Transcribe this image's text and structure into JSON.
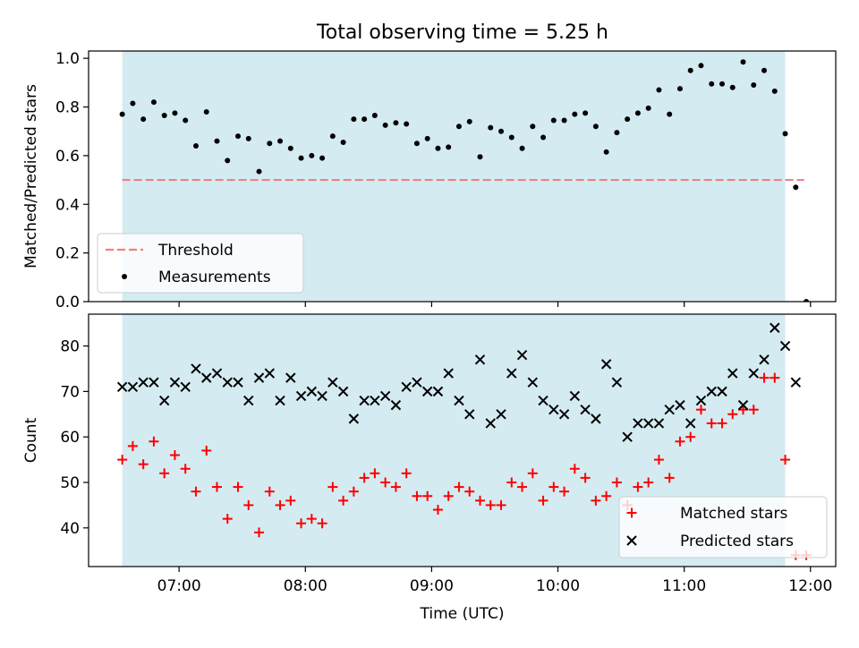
{
  "figure": {
    "title": "Total observing time = 5.25 h",
    "colors": {
      "background": "#ffffff",
      "observing_window": "#add8e6",
      "threshold": "#f08080",
      "measurements": "#000000",
      "matched": "#ff0000",
      "predicted": "#000000"
    }
  },
  "chart_data": [
    {
      "type": "scatter",
      "panel": "top",
      "ylabel": "Matched/Predicted stars",
      "xlim": [
        "06:17",
        "12:12"
      ],
      "ylim": [
        0,
        1.03
      ],
      "yticks": [
        "0.0",
        "0.2",
        "0.4",
        "0.6",
        "0.8",
        "1.0"
      ],
      "yticks_values": [
        0,
        0.2,
        0.4,
        0.6,
        0.8,
        1.0
      ],
      "observing_window": [
        "06:33",
        "11:48"
      ],
      "threshold": {
        "name": "Threshold",
        "value": 0.5,
        "x_range": [
          "06:33",
          "11:57"
        ],
        "style": "dashed"
      },
      "legend": {
        "placement": "lower-left",
        "entries": [
          "Threshold",
          "Measurements"
        ]
      },
      "series": [
        {
          "name": "Measurements",
          "marker": "dot",
          "x": [
            "06:33",
            "06:38",
            "06:43",
            "06:48",
            "06:53",
            "06:58",
            "07:03",
            "07:08",
            "07:13",
            "07:18",
            "07:23",
            "07:28",
            "07:33",
            "07:38",
            "07:43",
            "07:48",
            "07:53",
            "07:58",
            "08:03",
            "08:08",
            "08:13",
            "08:18",
            "08:23",
            "08:28",
            "08:33",
            "08:38",
            "08:43",
            "08:48",
            "08:53",
            "08:58",
            "09:03",
            "09:08",
            "09:13",
            "09:18",
            "09:23",
            "09:28",
            "09:33",
            "09:38",
            "09:43",
            "09:48",
            "09:53",
            "09:58",
            "10:03",
            "10:08",
            "10:13",
            "10:18",
            "10:23",
            "10:28",
            "10:33",
            "10:38",
            "10:43",
            "10:48",
            "10:53",
            "10:58",
            "11:03",
            "11:08",
            "11:13",
            "11:18",
            "11:23",
            "11:28",
            "11:33",
            "11:38",
            "11:43",
            "11:48",
            "11:53",
            "11:58"
          ],
          "values": [
            0.77,
            0.815,
            0.75,
            0.82,
            0.765,
            0.775,
            0.745,
            0.64,
            0.78,
            0.66,
            0.58,
            0.68,
            0.67,
            0.535,
            0.65,
            0.66,
            0.63,
            0.59,
            0.6,
            0.59,
            0.68,
            0.655,
            0.75,
            0.75,
            0.765,
            0.725,
            0.735,
            0.73,
            0.65,
            0.67,
            0.63,
            0.635,
            0.72,
            0.74,
            0.595,
            0.715,
            0.7,
            0.675,
            0.63,
            0.72,
            0.675,
            0.745,
            0.745,
            0.77,
            0.775,
            0.72,
            0.615,
            0.695,
            0.75,
            0.775,
            0.795,
            0.87,
            0.77,
            0.875,
            0.95,
            0.97,
            0.895,
            0.895,
            0.88,
            0.985,
            0.89,
            0.95,
            0.865,
            0.69,
            0.47,
            0.0
          ]
        }
      ]
    },
    {
      "type": "scatter",
      "panel": "bottom",
      "xlabel": "Time (UTC)",
      "ylabel": "Count",
      "xlim": [
        "06:17",
        "12:12"
      ],
      "ylim": [
        31.5,
        87
      ],
      "xticks": [
        "07:00",
        "08:00",
        "09:00",
        "10:00",
        "11:00",
        "12:00"
      ],
      "yticks": [
        "40",
        "50",
        "60",
        "70",
        "80"
      ],
      "yticks_values": [
        40,
        50,
        60,
        70,
        80
      ],
      "observing_window": [
        "06:33",
        "11:48"
      ],
      "legend": {
        "placement": "lower-right",
        "entries": [
          "Matched stars",
          "Predicted stars"
        ]
      },
      "series": [
        {
          "name": "Matched stars",
          "marker": "plus",
          "x": [
            "06:33",
            "06:38",
            "06:43",
            "06:48",
            "06:53",
            "06:58",
            "07:03",
            "07:08",
            "07:13",
            "07:18",
            "07:23",
            "07:28",
            "07:33",
            "07:38",
            "07:43",
            "07:48",
            "07:53",
            "07:58",
            "08:03",
            "08:08",
            "08:13",
            "08:18",
            "08:23",
            "08:28",
            "08:33",
            "08:38",
            "08:43",
            "08:48",
            "08:53",
            "08:58",
            "09:03",
            "09:08",
            "09:13",
            "09:18",
            "09:23",
            "09:28",
            "09:33",
            "09:38",
            "09:43",
            "09:48",
            "09:53",
            "09:58",
            "10:03",
            "10:08",
            "10:13",
            "10:18",
            "10:23",
            "10:28",
            "10:33",
            "10:38",
            "10:43",
            "10:48",
            "10:53",
            "10:58",
            "11:03",
            "11:08",
            "11:13",
            "11:18",
            "11:23",
            "11:28",
            "11:33",
            "11:38",
            "11:43",
            "11:48",
            "11:53",
            "11:58"
          ],
          "values": [
            55,
            58,
            54,
            59,
            52,
            56,
            53,
            48,
            57,
            49,
            42,
            49,
            45,
            39,
            48,
            45,
            46,
            41,
            42,
            41,
            49,
            46,
            48,
            51,
            52,
            50,
            49,
            52,
            47,
            47,
            44,
            47,
            49,
            48,
            46,
            45,
            45,
            50,
            49,
            52,
            46,
            49,
            48,
            53,
            51,
            46,
            47,
            50,
            45,
            49,
            50,
            55,
            51,
            59,
            60,
            66,
            63,
            63,
            65,
            66,
            66,
            73,
            73,
            55,
            34,
            34
          ]
        },
        {
          "name": "Predicted stars",
          "marker": "x",
          "x": [
            "06:33",
            "06:38",
            "06:43",
            "06:48",
            "06:53",
            "06:58",
            "07:03",
            "07:08",
            "07:13",
            "07:18",
            "07:23",
            "07:28",
            "07:33",
            "07:38",
            "07:43",
            "07:48",
            "07:53",
            "07:58",
            "08:03",
            "08:08",
            "08:13",
            "08:18",
            "08:23",
            "08:28",
            "08:33",
            "08:38",
            "08:43",
            "08:48",
            "08:53",
            "08:58",
            "09:03",
            "09:08",
            "09:13",
            "09:18",
            "09:23",
            "09:28",
            "09:33",
            "09:38",
            "09:43",
            "09:48",
            "09:53",
            "09:58",
            "10:03",
            "10:08",
            "10:13",
            "10:18",
            "10:23",
            "10:28",
            "10:33",
            "10:38",
            "10:43",
            "10:48",
            "10:53",
            "10:58",
            "11:03",
            "11:08",
            "11:13",
            "11:18",
            "11:23",
            "11:28",
            "11:33",
            "11:38",
            "11:43",
            "11:48",
            "11:53"
          ],
          "values": [
            71,
            71,
            72,
            72,
            68,
            72,
            71,
            75,
            73,
            74,
            72,
            72,
            68,
            73,
            74,
            68,
            73,
            69,
            70,
            69,
            72,
            70,
            64,
            68,
            68,
            69,
            67,
            71,
            72,
            70,
            70,
            74,
            68,
            65,
            77,
            63,
            65,
            74,
            78,
            72,
            68,
            66,
            65,
            69,
            66,
            64,
            76,
            72,
            60,
            63,
            63,
            63,
            66,
            67,
            63,
            68,
            70,
            70,
            74,
            67,
            74,
            77,
            84,
            80,
            72
          ]
        }
      ]
    }
  ]
}
